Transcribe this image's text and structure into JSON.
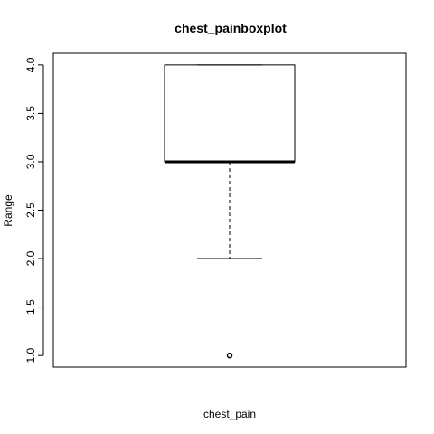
{
  "chart_data": {
    "type": "boxplot",
    "title": "chest_painboxplot",
    "xlabel": "chest_pain",
    "ylabel": "Range",
    "ylim": [
      0.88,
      4.12
    ],
    "yticks": [
      1.0,
      1.5,
      2.0,
      2.5,
      3.0,
      3.5,
      4.0
    ],
    "ytick_labels": [
      "1.0",
      "1.5",
      "2.0",
      "2.5",
      "3.0",
      "3.5",
      "4.0"
    ],
    "grid": false,
    "legend": "none",
    "box": {
      "whisker_low": 2.0,
      "q1": 3.0,
      "median": 3.0,
      "q3": 4.0,
      "whisker_high": 4.0,
      "outliers": [
        1.0
      ]
    }
  }
}
